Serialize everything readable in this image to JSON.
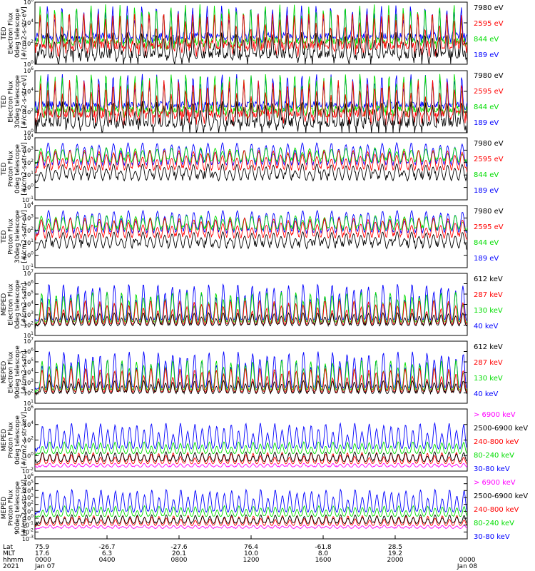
{
  "chart_data": [
    {
      "type": "line",
      "ylabel": [
        "TED",
        "Electron Flux",
        "0deg telescope",
        "[#/cm2-s-str-eV]"
      ],
      "yscale": "log",
      "ylim": [
        1,
        1000000
      ],
      "yticks": [
        {
          "e": "0"
        },
        {
          "e": "2"
        },
        {
          "e": "4"
        },
        {
          "e": "6"
        }
      ],
      "series": [
        {
          "name": "7980 eV",
          "color": "#000000"
        },
        {
          "name": "2595 eV",
          "color": "#ff0000"
        },
        {
          "name": "844 eV",
          "color": "#00dd00"
        },
        {
          "name": "189 eV",
          "color": "#0000ff"
        }
      ]
    },
    {
      "type": "line",
      "ylabel": [
        "TED",
        "Electron Flux",
        "30deg telescope",
        "[#/cm2-s-str-eV]"
      ],
      "yscale": "log",
      "ylim": [
        1,
        1000000
      ],
      "yticks": [
        {
          "e": "0"
        },
        {
          "e": "2"
        },
        {
          "e": "4"
        },
        {
          "e": "6"
        }
      ],
      "series": [
        {
          "name": "7980 eV",
          "color": "#000000"
        },
        {
          "name": "2595 eV",
          "color": "#ff0000"
        },
        {
          "name": "844 eV",
          "color": "#00dd00"
        },
        {
          "name": "189 eV",
          "color": "#0000ff"
        }
      ]
    },
    {
      "type": "line",
      "ylabel": [
        "TED",
        "Proton Flux",
        "0deg telescope",
        "[#/cm2-s-str-eV]"
      ],
      "yscale": "log",
      "ylim": [
        0.1,
        10000
      ],
      "yticks": [
        {
          "e": "-1"
        },
        {
          "e": "0"
        },
        {
          "e": "1"
        },
        {
          "e": "2"
        },
        {
          "e": "3"
        },
        {
          "e": "4"
        }
      ],
      "series": [
        {
          "name": "7980 eV",
          "color": "#000000"
        },
        {
          "name": "2595 eV",
          "color": "#ff0000"
        },
        {
          "name": "844 eV",
          "color": "#00dd00"
        },
        {
          "name": "189 eV",
          "color": "#0000ff"
        }
      ]
    },
    {
      "type": "line",
      "ylabel": [
        "TED",
        "Proton Flux",
        "30deg telescope",
        "[#/cm2-s-str-eV]"
      ],
      "yscale": "log",
      "ylim": [
        0.1,
        10000
      ],
      "yticks": [
        {
          "e": "-1"
        },
        {
          "e": "0"
        },
        {
          "e": "1"
        },
        {
          "e": "2"
        },
        {
          "e": "3"
        },
        {
          "e": "4"
        }
      ],
      "series": [
        {
          "name": "7980 eV",
          "color": "#000000"
        },
        {
          "name": "2595 eV",
          "color": "#ff0000"
        },
        {
          "name": "844 eV",
          "color": "#00dd00"
        },
        {
          "name": "189 eV",
          "color": "#0000ff"
        }
      ]
    },
    {
      "type": "line",
      "ylabel": [
        "MEPED",
        "Electron Flux",
        "0deg telescope",
        "[#/cm2-s-str]"
      ],
      "yscale": "log",
      "ylim": [
        10,
        10000000
      ],
      "yticks": [
        {
          "e": "1"
        },
        {
          "e": "2"
        },
        {
          "e": "3"
        },
        {
          "e": "4"
        },
        {
          "e": "5"
        },
        {
          "e": "6"
        },
        {
          "e": "7"
        }
      ],
      "series": [
        {
          "name": "612 keV",
          "color": "#000000"
        },
        {
          "name": "287 keV",
          "color": "#ff0000"
        },
        {
          "name": "130 keV",
          "color": "#00dd00"
        },
        {
          "name": "40 keV",
          "color": "#0000ff"
        }
      ]
    },
    {
      "type": "line",
      "ylabel": [
        "MEPED",
        "Electron Flux",
        "90deg telescope",
        "[#/cm2-s-str]"
      ],
      "yscale": "log",
      "ylim": [
        10,
        10000000
      ],
      "yticks": [
        {
          "e": "1"
        },
        {
          "e": "2"
        },
        {
          "e": "3"
        },
        {
          "e": "4"
        },
        {
          "e": "5"
        },
        {
          "e": "6"
        },
        {
          "e": "7"
        }
      ],
      "series": [
        {
          "name": "612 keV",
          "color": "#000000"
        },
        {
          "name": "287 keV",
          "color": "#ff0000"
        },
        {
          "name": "130 keV",
          "color": "#00dd00"
        },
        {
          "name": "40 keV",
          "color": "#0000ff"
        }
      ]
    },
    {
      "type": "line",
      "ylabel": [
        "MEPED",
        "Proton Flux",
        "0deg telescope",
        "[#/cm2-s-str-keV]"
      ],
      "yscale": "log",
      "ylim": [
        0.01,
        1000000
      ],
      "yticks": [
        {
          "e": "-2"
        },
        {
          "e": "0"
        },
        {
          "e": "2"
        },
        {
          "e": "4"
        },
        {
          "e": "6"
        }
      ],
      "series": [
        {
          "name": "> 6900 keV",
          "color": "#ff00ff"
        },
        {
          "name": "2500-6900 keV",
          "color": "#000000"
        },
        {
          "name": "240-800 keV",
          "color": "#ff0000"
        },
        {
          "name": "80-240 keV",
          "color": "#00dd00"
        },
        {
          "name": "30-80 keV",
          "color": "#0000ff"
        }
      ]
    },
    {
      "type": "line",
      "ylabel": [
        "MEPED",
        "Proton Flux",
        "90deg telescope",
        "[#/cm2-s-str-keV]"
      ],
      "yscale": "log",
      "ylim": [
        0.001,
        1000000
      ],
      "yticks": [
        {
          "e": "-3"
        },
        {
          "e": "-2"
        },
        {
          "e": "-1"
        },
        {
          "e": "0"
        },
        {
          "e": "1"
        },
        {
          "e": "2"
        },
        {
          "e": "3"
        },
        {
          "e": "4"
        },
        {
          "e": "5"
        },
        {
          "e": "6"
        }
      ],
      "series": [
        {
          "name": "> 6900 keV",
          "color": "#ff00ff"
        },
        {
          "name": "2500-6900 keV",
          "color": "#000000"
        },
        {
          "name": "240-800 keV",
          "color": "#ff0000"
        },
        {
          "name": "80-240 keV",
          "color": "#00dd00"
        },
        {
          "name": "30-80 keV",
          "color": "#0000ff"
        }
      ]
    }
  ],
  "x_axis": {
    "row_labels": [
      "Lat",
      "MLT",
      "hhmm",
      "2021"
    ],
    "ticks": [
      {
        "pos": 0.0,
        "lat": "75.9",
        "mlt": "17.6",
        "hhmm": "0000",
        "date": "Jan 07"
      },
      {
        "pos": 0.1667,
        "lat": "-26.7",
        "mlt": "6.3",
        "hhmm": "0400",
        "date": ""
      },
      {
        "pos": 0.3333,
        "lat": "-27.6",
        "mlt": "20.1",
        "hhmm": "0800",
        "date": ""
      },
      {
        "pos": 0.5,
        "lat": "76.4",
        "mlt": "10.0",
        "hhmm": "1200",
        "date": ""
      },
      {
        "pos": 0.6667,
        "lat": "-61.8",
        "mlt": "8.0",
        "hhmm": "1600",
        "date": ""
      },
      {
        "pos": 0.8333,
        "lat": "28.5",
        "mlt": "19.2",
        "hhmm": "2000",
        "date": ""
      },
      {
        "pos": 1.0,
        "lat": "",
        "mlt": "",
        "hhmm": "0000",
        "date": "Jan 08"
      }
    ]
  }
}
